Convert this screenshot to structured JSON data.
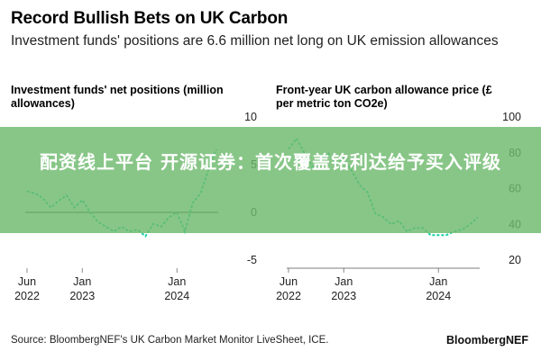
{
  "header": {
    "title": "Record Bullish Bets on UK Carbon",
    "subtitle": "Investment funds' positions are 6.6 million net long on UK emission allowances"
  },
  "chart_data": [
    {
      "type": "line",
      "title": "Investment funds' net positions (million allowances)",
      "ylim": [
        -5,
        10
      ],
      "yticks": [
        "10",
        "5",
        "0",
        "-5"
      ],
      "xticks": [
        {
          "month": "Jun",
          "year": "2022"
        },
        {
          "month": "Jan",
          "year": "2023"
        },
        {
          "month": "Jan",
          "year": "2024"
        }
      ],
      "series": [
        {
          "x": [
            "2022-06",
            "2022-07",
            "2022-08",
            "2022-09",
            "2022-10",
            "2022-11",
            "2022-12",
            "2023-01",
            "2023-02",
            "2023-03",
            "2023-04",
            "2023-05",
            "2023-06",
            "2023-07",
            "2023-08",
            "2023-09",
            "2023-10",
            "2023-11",
            "2023-12",
            "2024-01",
            "2024-02",
            "2024-03",
            "2024-04",
            "2024-05",
            "2024-06"
          ],
          "values": [
            2.2,
            2.0,
            1.5,
            0.5,
            1.2,
            1.8,
            0.5,
            1.3,
            0.0,
            -1.0,
            -1.5,
            -2.0,
            -1.5,
            -2.0,
            -1.8,
            -2.5,
            -1.2,
            -1.5,
            -0.5,
            0.0,
            -2.0,
            1.0,
            2.0,
            4.5,
            6.6
          ]
        }
      ]
    },
    {
      "type": "line",
      "title": "Front-year UK carbon allowance price (£ per metric ton CO2e)",
      "ylim": [
        20,
        100
      ],
      "yticks": [
        "100",
        "80",
        "60",
        "40",
        "20"
      ],
      "xticks": [
        {
          "month": "Jun",
          "year": "2022"
        },
        {
          "month": "Jan",
          "year": "2023"
        },
        {
          "month": "Jan",
          "year": "2024"
        }
      ],
      "series": [
        {
          "x": [
            "2022-06",
            "2022-07",
            "2022-08",
            "2022-09",
            "2022-10",
            "2022-11",
            "2022-12",
            "2023-01",
            "2023-02",
            "2023-03",
            "2023-04",
            "2023-05",
            "2023-06",
            "2023-07",
            "2023-08",
            "2023-09",
            "2023-10",
            "2023-11",
            "2023-12",
            "2024-01",
            "2024-02",
            "2024-03",
            "2024-04",
            "2024-05",
            "2024-06"
          ],
          "values": [
            82,
            88,
            80,
            72,
            75,
            80,
            74,
            77,
            70,
            62,
            58,
            46,
            44,
            40,
            42,
            36,
            38,
            38,
            34,
            34,
            34,
            36,
            37,
            40,
            44
          ]
        }
      ]
    }
  ],
  "overlay": {
    "text": "配资线上平台 开源证券：首次覆盖铭利达给予买入评级"
  },
  "footer": {
    "source": "Source: BloombergNEF's UK Carbon Market Monitor LiveSheet, ICE.",
    "brand": "BloombergNEF"
  },
  "colors": {
    "line": "#18d0a0",
    "zero_line": "#555555",
    "tick": "#888888",
    "banner": "#6eb96e"
  }
}
